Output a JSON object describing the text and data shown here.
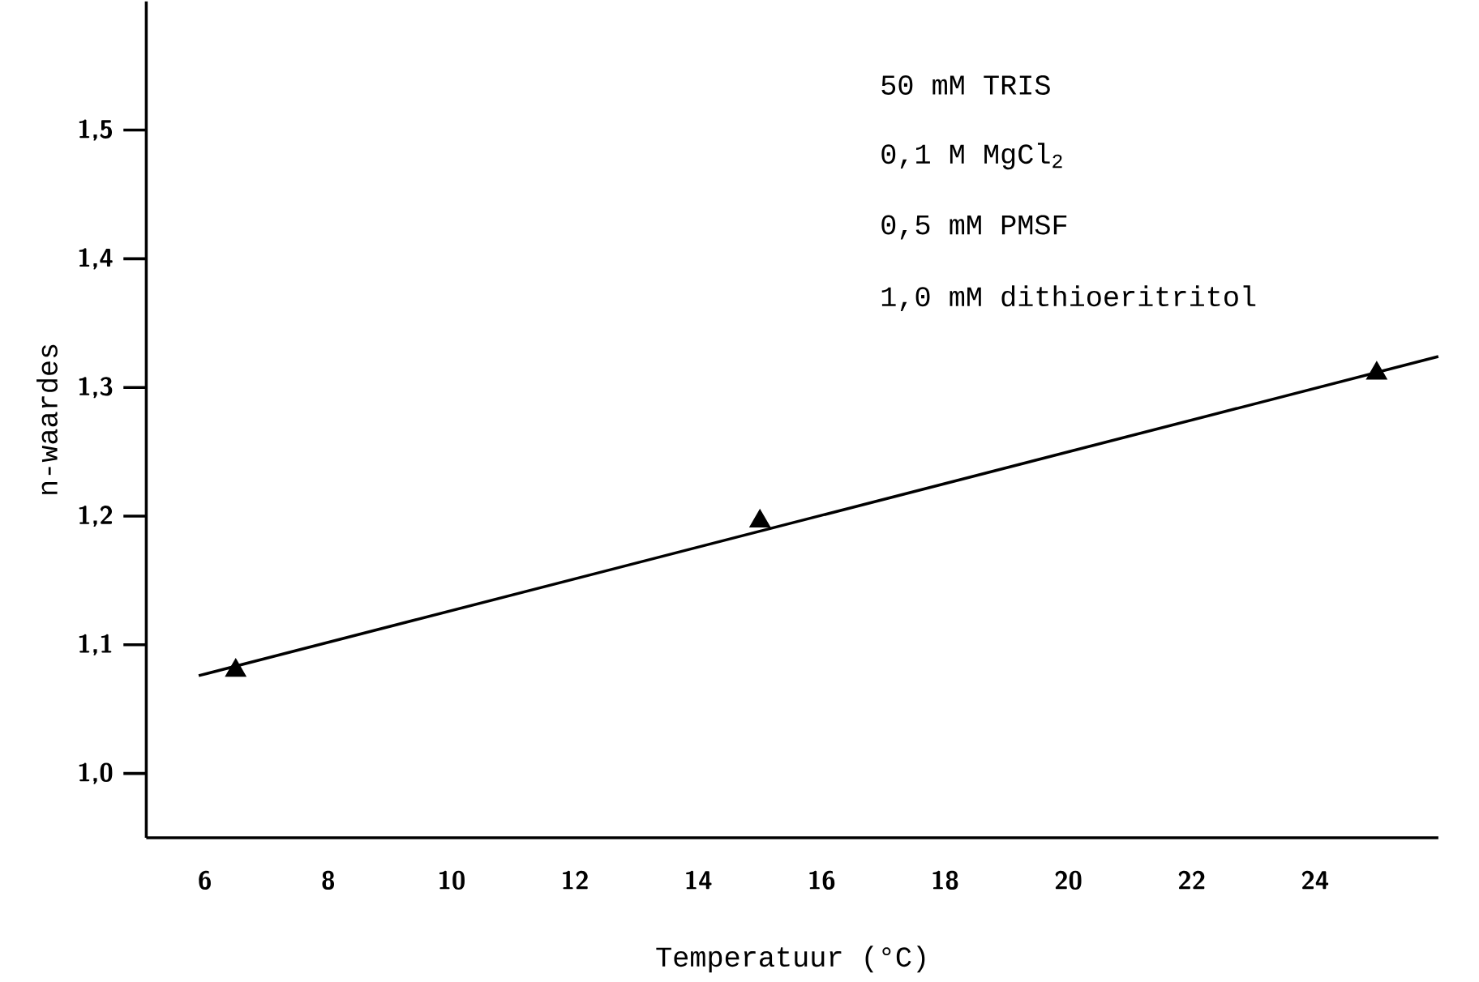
{
  "chart_data": {
    "type": "scatter",
    "xlabel": "Temperatuur (°C)",
    "ylabel": "n-waardes",
    "annotations": [
      "50 mM TRIS",
      "0,1  M MgCl$_{2}$",
      "0,5 mM PMSF",
      "1,0 mM dithioeritritol"
    ],
    "xlim": [
      5.05,
      26
    ],
    "ylim": [
      0.95,
      1.6
    ],
    "xticks": [
      6,
      8,
      10,
      12,
      14,
      16,
      18,
      20,
      22,
      24
    ],
    "yticks": [
      {
        "value": 1.0,
        "label": "1,0"
      },
      {
        "value": 1.1,
        "label": "1,1"
      },
      {
        "value": 1.2,
        "label": "1,2"
      },
      {
        "value": 1.3,
        "label": "1,3"
      },
      {
        "value": 1.4,
        "label": "1,4"
      },
      {
        "value": 1.5,
        "label": "1,5"
      }
    ],
    "series": [
      {
        "marker": "triangle",
        "color": "#000000",
        "x": [
          6.5,
          15,
          25
        ],
        "values": [
          1.08,
          1.196,
          1.311
        ]
      },
      {
        "type": "line",
        "marker": "none",
        "line_style": "solid",
        "color": "#000000",
        "x": [
          5.9,
          26
        ],
        "values": [
          1.076,
          1.324
        ]
      }
    ]
  }
}
